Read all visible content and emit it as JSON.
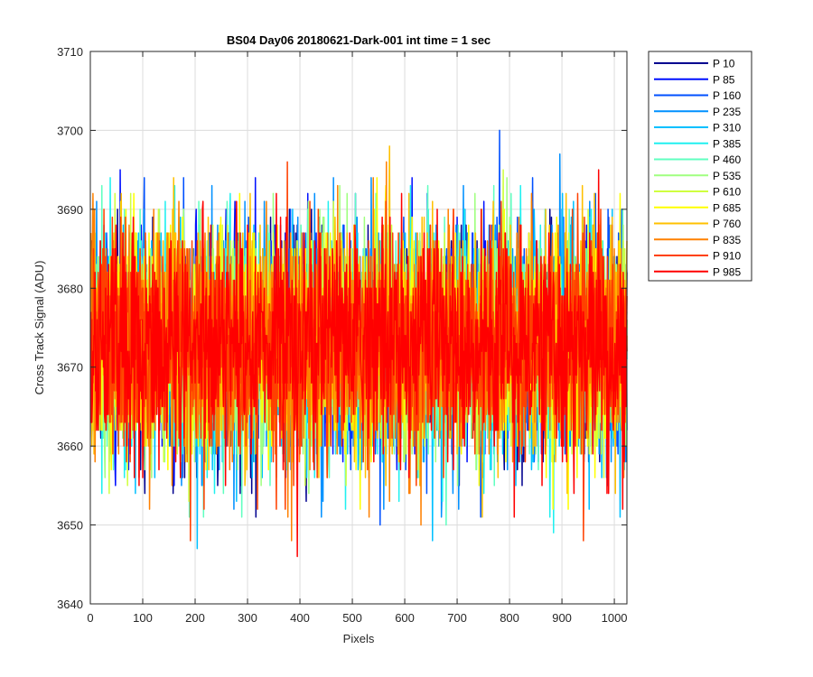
{
  "chart_data": {
    "type": "line",
    "title": "BS04 Day06 20180621-Dark-001 int time = 1 sec",
    "xlabel": "Pixels",
    "ylabel": "Cross Track Signal (ADU)",
    "xlim": [
      0,
      1024
    ],
    "ylim": [
      3640,
      3710
    ],
    "xticks": [
      0,
      100,
      200,
      300,
      400,
      500,
      600,
      700,
      800,
      900,
      1000
    ],
    "yticks": [
      3640,
      3650,
      3660,
      3670,
      3680,
      3690,
      3700,
      3710
    ],
    "x_values": "pixel index 1 to 1024",
    "grid": true,
    "legend_position": "outside-right",
    "noise": {
      "mean": 3673,
      "std": 7
    },
    "series": [
      {
        "name": "P 10",
        "color": "#00008f",
        "max": 3690
      },
      {
        "name": "P 85",
        "color": "#0010ff",
        "max": 3698
      },
      {
        "name": "P 160",
        "color": "#0050ff",
        "max": 3700
      },
      {
        "name": "P 235",
        "color": "#0090ff",
        "max": 3697
      },
      {
        "name": "P 310",
        "color": "#00c0ff",
        "max": 3696
      },
      {
        "name": "P 385",
        "color": "#20f0f0",
        "max": 3699
      },
      {
        "name": "P 460",
        "color": "#60ffc0",
        "max": 3695
      },
      {
        "name": "P 535",
        "color": "#a0ff80",
        "max": 3696
      },
      {
        "name": "P 610",
        "color": "#d0ff40",
        "max": 3701
      },
      {
        "name": "P 685",
        "color": "#ffff00",
        "max": 3697
      },
      {
        "name": "P 760",
        "color": "#ffc000",
        "max": 3701
      },
      {
        "name": "P 835",
        "color": "#ff8000",
        "max": 3699
      },
      {
        "name": "P 910",
        "color": "#ff4000",
        "max": 3699
      },
      {
        "name": "P 985",
        "color": "#ff0000",
        "max": 3698
      }
    ]
  }
}
